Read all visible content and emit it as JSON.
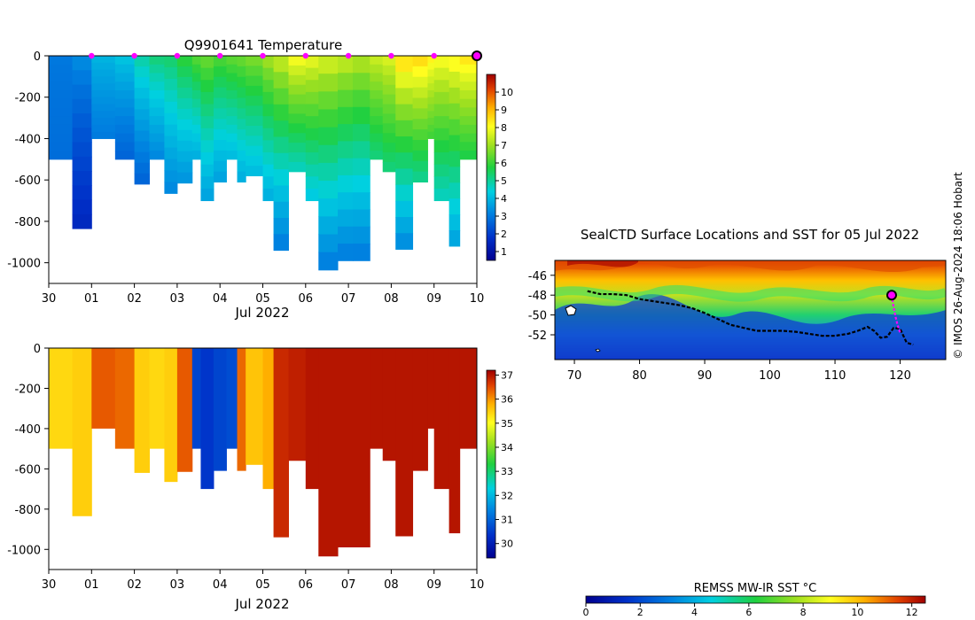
{
  "chart_data": [
    {
      "id": "temperature",
      "type": "heatmap",
      "title": "Q9901641  Temperature",
      "xlabel": "Jul 2022",
      "ylabel": "",
      "x_tick_labels": [
        "30",
        "01",
        "02",
        "03",
        "04",
        "05",
        "06",
        "07",
        "08",
        "09",
        "10"
      ],
      "y_tick_labels": [
        "0",
        "-200",
        "-400",
        "-600",
        "-800",
        "-1000"
      ],
      "ylim": [
        -1100,
        0
      ],
      "colorbar": {
        "min": 0.5,
        "max": 11,
        "ticks": [
          "1",
          "2",
          "3",
          "4",
          "5",
          "6",
          "7",
          "8",
          "9",
          "10"
        ]
      },
      "profiles": [
        {
          "x": 0.0,
          "depth": -500,
          "surface": 3.0,
          "bottom": 2.8
        },
        {
          "x": 0.55,
          "depth": -835,
          "surface": 3.4,
          "bottom": 1.5
        },
        {
          "x": 1.0,
          "depth": -400,
          "surface": 4.0,
          "bottom": 3.0
        },
        {
          "x": 1.55,
          "depth": -500,
          "surface": 4.3,
          "bottom": 2.6
        },
        {
          "x": 2.0,
          "depth": -620,
          "surface": 5.0,
          "bottom": 2.6
        },
        {
          "x": 2.35,
          "depth": -500,
          "surface": 5.4,
          "bottom": 3.2
        },
        {
          "x": 2.7,
          "depth": -665,
          "surface": 5.5,
          "bottom": 3.2
        },
        {
          "x": 3.0,
          "depth": -615,
          "surface": 6.0,
          "bottom": 3.4
        },
        {
          "x": 3.35,
          "depth": -500,
          "surface": 6.4,
          "bottom": 3.8
        },
        {
          "x": 3.55,
          "depth": -700,
          "surface": 6.6,
          "bottom": 3.6
        },
        {
          "x": 3.85,
          "depth": -610,
          "surface": 6.3,
          "bottom": 3.6
        },
        {
          "x": 4.15,
          "depth": -500,
          "surface": 6.5,
          "bottom": 4.0
        },
        {
          "x": 4.4,
          "depth": -610,
          "surface": 6.6,
          "bottom": 3.8
        },
        {
          "x": 4.6,
          "depth": -580,
          "surface": 6.8,
          "bottom": 4.0
        },
        {
          "x": 5.0,
          "depth": -700,
          "surface": 7.2,
          "bottom": 3.8
        },
        {
          "x": 5.25,
          "depth": -940,
          "surface": 7.6,
          "bottom": 3.0
        },
        {
          "x": 5.6,
          "depth": -560,
          "surface": 8.2,
          "bottom": 4.6
        },
        {
          "x": 6.0,
          "depth": -700,
          "surface": 8.0,
          "bottom": 4.2
        },
        {
          "x": 6.3,
          "depth": -1035,
          "surface": 7.8,
          "bottom": 3.0
        },
        {
          "x": 6.75,
          "depth": -990,
          "surface": 7.6,
          "bottom": 3.0
        },
        {
          "x": 7.1,
          "depth": -990,
          "surface": 7.4,
          "bottom": 3.0
        },
        {
          "x": 7.5,
          "depth": -500,
          "surface": 7.6,
          "bottom": 5.2
        },
        {
          "x": 7.8,
          "depth": -560,
          "surface": 7.8,
          "bottom": 5.2
        },
        {
          "x": 8.1,
          "depth": -935,
          "surface": 8.8,
          "bottom": 3.2
        },
        {
          "x": 8.5,
          "depth": -610,
          "surface": 8.8,
          "bottom": 5.0
        },
        {
          "x": 8.85,
          "depth": -400,
          "surface": 8.4,
          "bottom": 6.0
        },
        {
          "x": 9.0,
          "depth": -700,
          "surface": 8.2,
          "bottom": 4.6
        },
        {
          "x": 9.35,
          "depth": -920,
          "surface": 8.4,
          "bottom": 3.6
        },
        {
          "x": 9.6,
          "depth": -500,
          "surface": 8.6,
          "bottom": 5.6
        }
      ],
      "markers_x": [
        1,
        2,
        3,
        4,
        5,
        6,
        7,
        8,
        9
      ],
      "last_marker_x": 10
    },
    {
      "id": "salinity",
      "type": "heatmap",
      "title": "",
      "xlabel": "Jul 2022",
      "ylabel": "",
      "x_tick_labels": [
        "30",
        "01",
        "02",
        "03",
        "04",
        "05",
        "06",
        "07",
        "08",
        "09",
        "10"
      ],
      "y_tick_labels": [
        "0",
        "-200",
        "-400",
        "-600",
        "-800",
        "-1000"
      ],
      "ylim": [
        -1100,
        0
      ],
      "colorbar": {
        "min": 29.4,
        "max": 37.2,
        "ticks": [
          "30",
          "31",
          "32",
          "33",
          "34",
          "35",
          "36",
          "37"
        ]
      },
      "profiles": [
        {
          "x": 0.0,
          "depth": -500,
          "value": 35.4
        },
        {
          "x": 0.55,
          "depth": -835,
          "value": 35.5
        },
        {
          "x": 1.0,
          "depth": -400,
          "value": 36.4
        },
        {
          "x": 1.55,
          "depth": -500,
          "value": 36.3
        },
        {
          "x": 2.0,
          "depth": -620,
          "value": 35.5
        },
        {
          "x": 2.35,
          "depth": -500,
          "value": 35.4
        },
        {
          "x": 2.7,
          "depth": -665,
          "value": 35.5
        },
        {
          "x": 3.0,
          "depth": -615,
          "value": 36.4
        },
        {
          "x": 3.35,
          "depth": -500,
          "value": 30.6
        },
        {
          "x": 3.55,
          "depth": -700,
          "value": 30.4
        },
        {
          "x": 3.85,
          "depth": -610,
          "value": 30.6
        },
        {
          "x": 4.15,
          "depth": -500,
          "value": 30.7
        },
        {
          "x": 4.4,
          "depth": -610,
          "value": 36.3
        },
        {
          "x": 4.6,
          "depth": -580,
          "value": 35.6
        },
        {
          "x": 5.0,
          "depth": -700,
          "value": 35.8
        },
        {
          "x": 5.25,
          "depth": -940,
          "value": 36.8
        },
        {
          "x": 5.6,
          "depth": -560,
          "value": 36.9
        },
        {
          "x": 6.0,
          "depth": -700,
          "value": 37.0
        },
        {
          "x": 6.3,
          "depth": -1035,
          "value": 37.0
        },
        {
          "x": 6.75,
          "depth": -990,
          "value": 37.0
        },
        {
          "x": 7.1,
          "depth": -990,
          "value": 37.0
        },
        {
          "x": 7.5,
          "depth": -500,
          "value": 37.0
        },
        {
          "x": 7.8,
          "depth": -560,
          "value": 37.0
        },
        {
          "x": 8.1,
          "depth": -935,
          "value": 37.0
        },
        {
          "x": 8.5,
          "depth": -610,
          "value": 37.0
        },
        {
          "x": 8.85,
          "depth": -400,
          "value": 37.0
        },
        {
          "x": 9.0,
          "depth": -700,
          "value": 37.0
        },
        {
          "x": 9.35,
          "depth": -920,
          "value": 37.0
        },
        {
          "x": 9.6,
          "depth": -500,
          "value": 37.0
        }
      ]
    },
    {
      "id": "sst-map",
      "type": "map",
      "title": "SealCTD Surface Locations and SST for 05 Jul 2022",
      "x_tick_labels": [
        "70",
        "80",
        "90",
        "100",
        "110",
        "120"
      ],
      "y_tick_labels": [
        "-46",
        "-48",
        "-50",
        "-52"
      ],
      "xlim": [
        67,
        127
      ],
      "ylim": [
        -54.5,
        -44.5
      ],
      "track": [
        [
          72.0,
          -47.6
        ],
        [
          74.0,
          -47.9
        ],
        [
          76.0,
          -47.9
        ],
        [
          78.0,
          -48.0
        ],
        [
          80.0,
          -48.4
        ],
        [
          83.0,
          -48.7
        ],
        [
          86.0,
          -49.0
        ],
        [
          88.0,
          -49.3
        ],
        [
          90.0,
          -49.8
        ],
        [
          92.0,
          -50.4
        ],
        [
          94.0,
          -51.0
        ],
        [
          96.0,
          -51.3
        ],
        [
          98.0,
          -51.6
        ],
        [
          100.0,
          -51.6
        ],
        [
          102.0,
          -51.6
        ],
        [
          104.0,
          -51.7
        ],
        [
          106.0,
          -51.9
        ],
        [
          108.0,
          -52.1
        ],
        [
          110.0,
          -52.1
        ],
        [
          112.0,
          -51.9
        ],
        [
          113.5,
          -51.6
        ],
        [
          115.0,
          -51.2
        ],
        [
          116.0,
          -51.6
        ],
        [
          117.0,
          -52.3
        ],
        [
          118.0,
          -52.2
        ],
        [
          119.0,
          -51.3
        ],
        [
          120.0,
          -51.4
        ],
        [
          121.0,
          -52.8
        ],
        [
          122.0,
          -53.0
        ]
      ],
      "magenta_track": [
        [
          118.7,
          -48.0
        ],
        [
          119.0,
          -49.2
        ],
        [
          119.3,
          -50.2
        ],
        [
          119.6,
          -51.0
        ],
        [
          120.0,
          -51.8
        ]
      ],
      "current_marker": [
        118.7,
        -48.0
      ],
      "sst_colorbar": {
        "label": "REMSS MW-IR SST °C",
        "min": 0,
        "max": 12.5,
        "ticks": [
          "0",
          "2",
          "4",
          "6",
          "8",
          "10",
          "12"
        ]
      }
    }
  ],
  "credit": "© IMOS 26-Aug-2024 18:06 Hobart",
  "colors": {
    "marker": "#ff00ff",
    "track": "#000000",
    "land": "#ffffff"
  }
}
